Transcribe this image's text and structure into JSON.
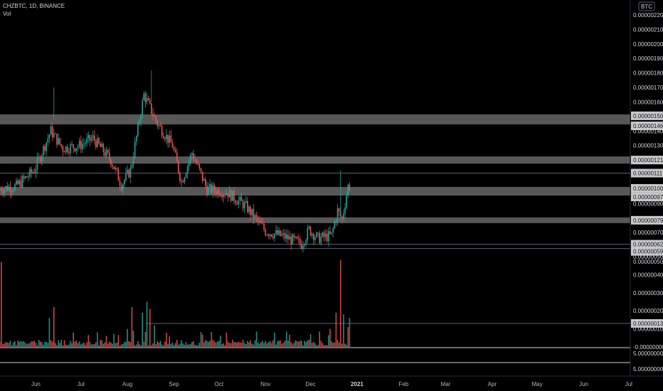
{
  "legend": {
    "symbol": "CHZBTC, 1D, BINANCE",
    "volume_label": "Vol"
  },
  "currency_badge": "BTC",
  "colors": {
    "up": "#26a69a",
    "down": "#ef5350",
    "zone": "#9e9e9e",
    "background": "#000000"
  },
  "chart_data": {
    "type": "candlestick",
    "title": "CHZBTC, 1D, BINANCE",
    "x_ticks": [
      "Jun",
      "Jul",
      "Aug",
      "Sep",
      "Oct",
      "Nov",
      "Dec",
      "2021",
      "Feb",
      "Mar",
      "Apr",
      "May",
      "Jun",
      "Jul"
    ],
    "price_axis": {
      "ylim": [
        5.5e-07,
        2.25e-06
      ],
      "tick_labels": [
        "0.00000220",
        "0.00000210",
        "0.00000200",
        "0.00000190",
        "0.00000180",
        "0.00000170",
        "0.00000160",
        "0.00000140",
        "0.00000130",
        "0.00000110",
        "0.00000090",
        "0.00000070",
        "0.00000050"
      ],
      "tick_values": [
        220,
        210,
        200,
        190,
        180,
        170,
        160,
        140,
        130,
        110,
        90,
        70,
        50
      ]
    },
    "price_series": {
      "name": "CHZBTC",
      "anchors": [
        {
          "date": "2020-05-08",
          "price": 1e-06
        },
        {
          "date": "2020-05-20",
          "price": 1.02e-06
        },
        {
          "date": "2020-06-01",
          "price": 1.13e-06
        },
        {
          "date": "2020-06-12",
          "price": 1.4e-06
        },
        {
          "date": "2020-06-20",
          "price": 1.28e-06
        },
        {
          "date": "2020-07-01",
          "price": 1.3e-06
        },
        {
          "date": "2020-07-10",
          "price": 1.35e-06
        },
        {
          "date": "2020-07-22",
          "price": 1.2e-06
        },
        {
          "date": "2020-07-29",
          "price": 1.03e-06
        },
        {
          "date": "2020-08-04",
          "price": 1.13e-06
        },
        {
          "date": "2020-08-13",
          "price": 1.65e-06
        },
        {
          "date": "2020-08-22",
          "price": 1.45e-06
        },
        {
          "date": "2020-09-01",
          "price": 1.3e-06
        },
        {
          "date": "2020-09-07",
          "price": 1.05e-06
        },
        {
          "date": "2020-09-14",
          "price": 1.25e-06
        },
        {
          "date": "2020-09-24",
          "price": 1e-06
        },
        {
          "date": "2020-10-07",
          "price": 9.8e-07
        },
        {
          "date": "2020-10-20",
          "price": 8.8e-07
        },
        {
          "date": "2020-11-02",
          "price": 7.1e-07
        },
        {
          "date": "2020-11-15",
          "price": 6.7e-07
        },
        {
          "date": "2020-11-26",
          "price": 6.2e-07
        },
        {
          "date": "2020-12-01",
          "price": 7.2e-07
        },
        {
          "date": "2020-12-07",
          "price": 6.6e-07
        },
        {
          "date": "2020-12-16",
          "price": 6.8e-07
        },
        {
          "date": "2020-12-20",
          "price": 8.5e-07
        },
        {
          "date": "2020-12-23",
          "price": 7.9e-07
        },
        {
          "date": "2020-12-27",
          "price": 1.02e-06
        }
      ],
      "last_close": 9.7e-07,
      "first_date": "2020-05-08",
      "last_date": "2020-12-27"
    },
    "volume_axis": {
      "tick_labels": [
        "0.00000050",
        "0.00000040",
        "0.00000030",
        "0.00000020",
        "0.00000010",
        "-0.00000000"
      ],
      "tick_values": [
        50,
        40,
        30,
        20,
        10,
        0
      ],
      "lower_labels": [
        "5.00000000",
        "5.00000000"
      ]
    },
    "volume_series": {
      "name": "Vol",
      "spikes": [
        {
          "date": "2020-05-09",
          "value": 4.7e-07
        },
        {
          "date": "2020-06-10",
          "value": 1.6e-07
        },
        {
          "date": "2020-06-13",
          "value": 2.2e-07
        },
        {
          "date": "2020-06-26",
          "value": 8e-08
        },
        {
          "date": "2020-08-01",
          "value": 1e-07
        },
        {
          "date": "2020-08-04",
          "value": 2.2e-07
        },
        {
          "date": "2020-08-11",
          "value": 1.9e-07
        },
        {
          "date": "2020-08-14",
          "value": 2.5e-07
        },
        {
          "date": "2020-08-16",
          "value": 2.1e-07
        },
        {
          "date": "2020-08-19",
          "value": 1.2e-07
        },
        {
          "date": "2020-12-14",
          "value": 1e-07
        },
        {
          "date": "2020-12-18",
          "value": 1.9e-07
        },
        {
          "date": "2020-12-21",
          "value": 4.8e-07
        },
        {
          "date": "2020-12-23",
          "value": 1.8e-07
        },
        {
          "date": "2020-12-26",
          "value": 1.1e-07
        },
        {
          "date": "2020-12-27",
          "value": 1.6e-07
        }
      ],
      "base_level": 2e-08
    },
    "zones": [
      {
        "low": 1.46e-06,
        "high": 1.5e-06,
        "labels": [
          "0.00000150",
          "0.00000146"
        ]
      },
      {
        "low": 1.19e-06,
        "high": 1.21e-06,
        "labels": [
          "0.00000121"
        ]
      },
      {
        "low": 9.7e-07,
        "high": 1e-06,
        "labels": [
          "0.00000100",
          "0.00000097"
        ]
      },
      {
        "low": 7.8e-07,
        "high": 7.9e-07,
        "labels": [
          "0.00000079"
        ]
      }
    ],
    "horizontal_lines": [
      {
        "value": 1.11e-06,
        "label": "0.00000111"
      },
      {
        "value": 6.2e-07,
        "label": "0.00000062"
      },
      {
        "value": 5.9e-07,
        "label": "0.00000059"
      }
    ],
    "volume_line": {
      "value": 1.3e-07,
      "label": "0.00000013"
    },
    "grid": false
  }
}
